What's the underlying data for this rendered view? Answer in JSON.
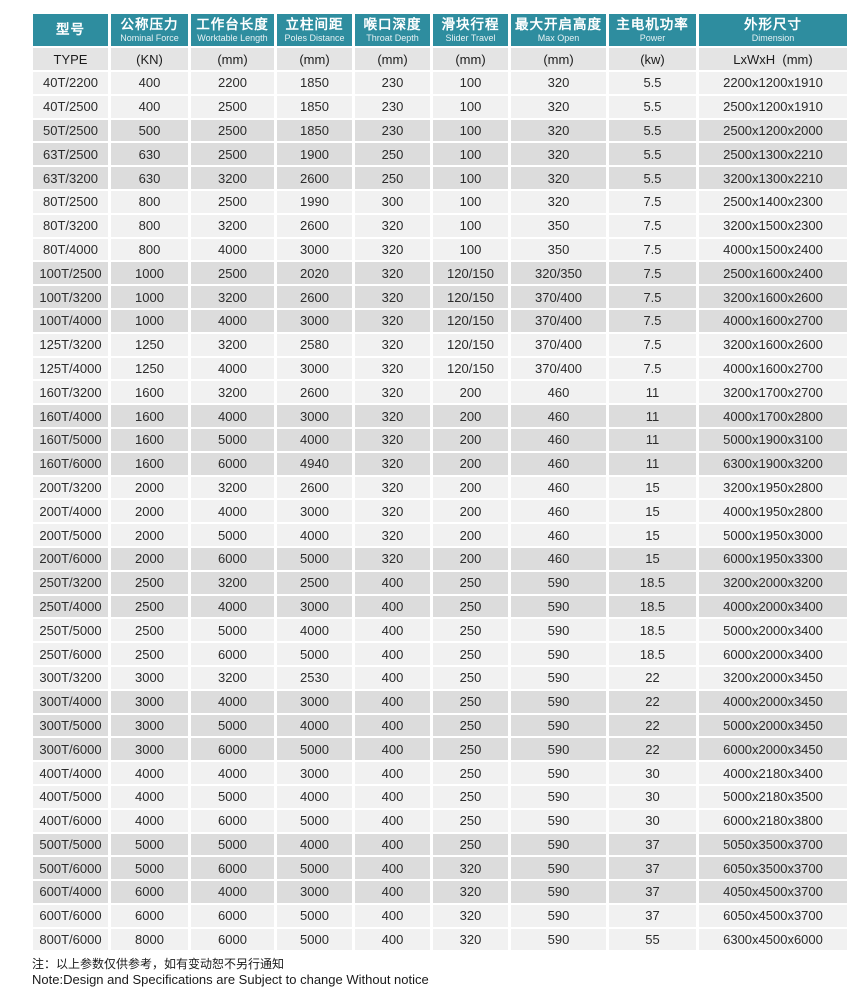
{
  "colors": {
    "header_teal": "#2E8D9F",
    "unit_row_gray": "#E4E4E4",
    "row_light": "#F1F1F1",
    "row_dark": "#DCDCDC"
  },
  "table": {
    "columns": [
      {
        "key": "type",
        "zh": "型号",
        "en": "",
        "unit": "TYPE"
      },
      {
        "key": "nominal-force",
        "zh": "公称压力",
        "en": "Nominal Force",
        "unit": "(KN)"
      },
      {
        "key": "worktable-length",
        "zh": "工作台长度",
        "en": "Worktable Length",
        "unit": "(mm)"
      },
      {
        "key": "poles-distance",
        "zh": "立柱间距",
        "en": "Poles Distance",
        "unit": "(mm)"
      },
      {
        "key": "throat-depth",
        "zh": "喉口深度",
        "en": "Throat Depth",
        "unit": "(mm)"
      },
      {
        "key": "slider-travel",
        "zh": "滑块行程",
        "en": "Slider Travel",
        "unit": "(mm)"
      },
      {
        "key": "max-open",
        "zh": "最大开启高度",
        "en": "Max Open",
        "unit": "(mm)"
      },
      {
        "key": "power",
        "zh": "主电机功率",
        "en": "Power",
        "unit": "(kw)"
      },
      {
        "key": "dimension",
        "zh": "外形尺寸",
        "en": "Dimension",
        "unit": "LxWxH  (mm)"
      }
    ],
    "rows": [
      [
        "40T/2200",
        "400",
        "2200",
        "1850",
        "230",
        "100",
        "320",
        "5.5",
        "2200x1200x1910"
      ],
      [
        "40T/2500",
        "400",
        "2500",
        "1850",
        "230",
        "100",
        "320",
        "5.5",
        "2500x1200x1910"
      ],
      [
        "50T/2500",
        "500",
        "2500",
        "1850",
        "230",
        "100",
        "320",
        "5.5",
        "2500x1200x2000"
      ],
      [
        "63T/2500",
        "630",
        "2500",
        "1900",
        "250",
        "100",
        "320",
        "5.5",
        "2500x1300x2210"
      ],
      [
        "63T/3200",
        "630",
        "3200",
        "2600",
        "250",
        "100",
        "320",
        "5.5",
        "3200x1300x2210"
      ],
      [
        "80T/2500",
        "800",
        "2500",
        "1990",
        "300",
        "100",
        "320",
        "7.5",
        "2500x1400x2300"
      ],
      [
        "80T/3200",
        "800",
        "3200",
        "2600",
        "320",
        "100",
        "350",
        "7.5",
        "3200x1500x2300"
      ],
      [
        "80T/4000",
        "800",
        "4000",
        "3000",
        "320",
        "100",
        "350",
        "7.5",
        "4000x1500x2400"
      ],
      [
        "100T/2500",
        "1000",
        "2500",
        "2020",
        "320",
        "120/150",
        "320/350",
        "7.5",
        "2500x1600x2400"
      ],
      [
        "100T/3200",
        "1000",
        "3200",
        "2600",
        "320",
        "120/150",
        "370/400",
        "7.5",
        "3200x1600x2600"
      ],
      [
        "100T/4000",
        "1000",
        "4000",
        "3000",
        "320",
        "120/150",
        "370/400",
        "7.5",
        "4000x1600x2700"
      ],
      [
        "125T/3200",
        "1250",
        "3200",
        "2580",
        "320",
        "120/150",
        "370/400",
        "7.5",
        "3200x1600x2600"
      ],
      [
        "125T/4000",
        "1250",
        "4000",
        "3000",
        "320",
        "120/150",
        "370/400",
        "7.5",
        "4000x1600x2700"
      ],
      [
        "160T/3200",
        "1600",
        "3200",
        "2600",
        "320",
        "200",
        "460",
        "11",
        "3200x1700x2700"
      ],
      [
        "160T/4000",
        "1600",
        "4000",
        "3000",
        "320",
        "200",
        "460",
        "11",
        "4000x1700x2800"
      ],
      [
        "160T/5000",
        "1600",
        "5000",
        "4000",
        "320",
        "200",
        "460",
        "11",
        "5000x1900x3100"
      ],
      [
        "160T/6000",
        "1600",
        "6000",
        "4940",
        "320",
        "200",
        "460",
        "11",
        "6300x1900x3200"
      ],
      [
        "200T/3200",
        "2000",
        "3200",
        "2600",
        "320",
        "200",
        "460",
        "15",
        "3200x1950x2800"
      ],
      [
        "200T/4000",
        "2000",
        "4000",
        "3000",
        "320",
        "200",
        "460",
        "15",
        "4000x1950x2800"
      ],
      [
        "200T/5000",
        "2000",
        "5000",
        "4000",
        "320",
        "200",
        "460",
        "15",
        "5000x1950x3000"
      ],
      [
        "200T/6000",
        "2000",
        "6000",
        "5000",
        "320",
        "200",
        "460",
        "15",
        "6000x1950x3300"
      ],
      [
        "250T/3200",
        "2500",
        "3200",
        "2500",
        "400",
        "250",
        "590",
        "18.5",
        "3200x2000x3200"
      ],
      [
        "250T/4000",
        "2500",
        "4000",
        "3000",
        "400",
        "250",
        "590",
        "18.5",
        "4000x2000x3400"
      ],
      [
        "250T/5000",
        "2500",
        "5000",
        "4000",
        "400",
        "250",
        "590",
        "18.5",
        "5000x2000x3400"
      ],
      [
        "250T/6000",
        "2500",
        "6000",
        "5000",
        "400",
        "250",
        "590",
        "18.5",
        "6000x2000x3400"
      ],
      [
        "300T/3200",
        "3000",
        "3200",
        "2530",
        "400",
        "250",
        "590",
        "22",
        "3200x2000x3450"
      ],
      [
        "300T/4000",
        "3000",
        "4000",
        "3000",
        "400",
        "250",
        "590",
        "22",
        "4000x2000x3450"
      ],
      [
        "300T/5000",
        "3000",
        "5000",
        "4000",
        "400",
        "250",
        "590",
        "22",
        "5000x2000x3450"
      ],
      [
        "300T/6000",
        "3000",
        "6000",
        "5000",
        "400",
        "250",
        "590",
        "22",
        "6000x2000x3450"
      ],
      [
        "400T/4000",
        "4000",
        "4000",
        "3000",
        "400",
        "250",
        "590",
        "30",
        "4000x2180x3400"
      ],
      [
        "400T/5000",
        "4000",
        "5000",
        "4000",
        "400",
        "250",
        "590",
        "30",
        "5000x2180x3500"
      ],
      [
        "400T/6000",
        "4000",
        "6000",
        "5000",
        "400",
        "250",
        "590",
        "30",
        "6000x2180x3800"
      ],
      [
        "500T/5000",
        "5000",
        "5000",
        "4000",
        "400",
        "250",
        "590",
        "37",
        "5050x3500x3700"
      ],
      [
        "500T/6000",
        "5000",
        "6000",
        "5000",
        "400",
        "320",
        "590",
        "37",
        "6050x3500x3700"
      ],
      [
        "600T/4000",
        "6000",
        "4000",
        "3000",
        "400",
        "320",
        "590",
        "37",
        "4050x4500x3700"
      ],
      [
        "600T/6000",
        "6000",
        "6000",
        "5000",
        "400",
        "320",
        "590",
        "37",
        "6050x4500x3700"
      ],
      [
        "800T/6000",
        "8000",
        "6000",
        "5000",
        "400",
        "320",
        "590",
        "55",
        "6300x4500x6000"
      ]
    ]
  },
  "notes": {
    "zh": "注：以上参数仅供参考，如有变动恕不另行通知",
    "en": "Note:Design and Specifications are Subject to change Without notice"
  }
}
